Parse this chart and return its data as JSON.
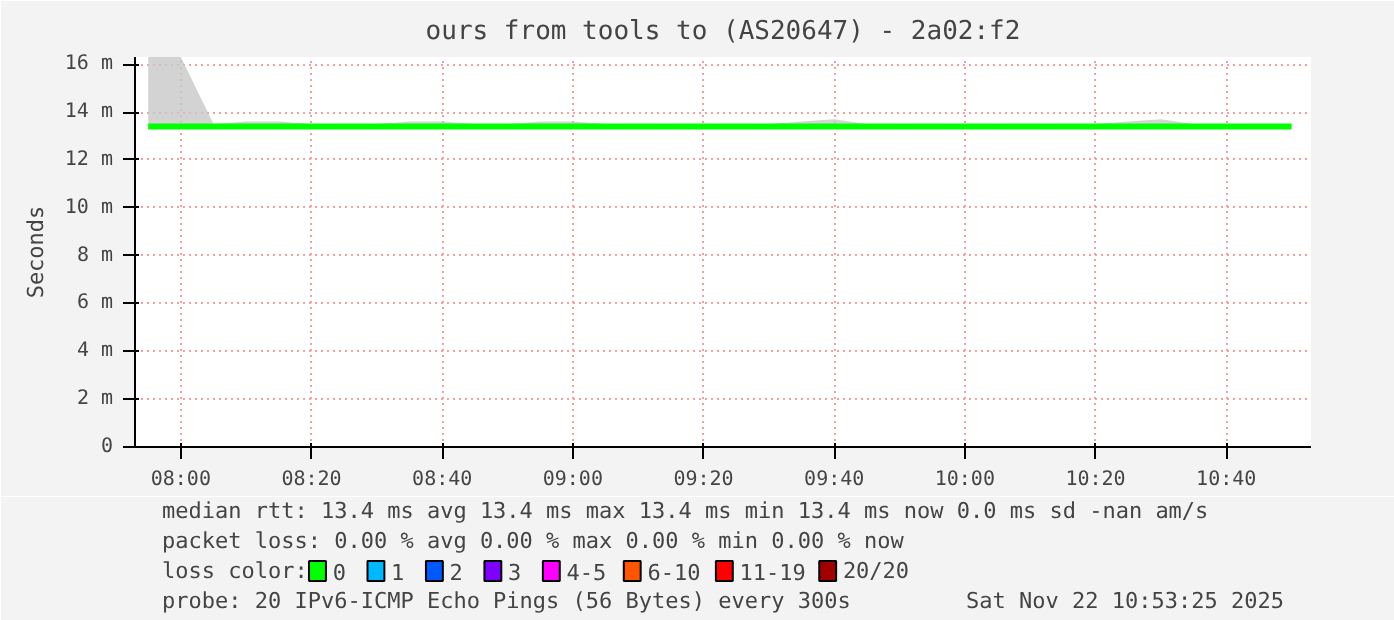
{
  "chart_data": {
    "type": "line",
    "title": "ours from tools to (AS20647) - 2a02:f2",
    "ylabel": "Seconds",
    "x": [
      7.9167,
      8.0,
      8.0833,
      8.1667,
      8.25,
      8.3333,
      8.4167,
      8.5,
      8.5833,
      8.6667,
      8.75,
      8.8333,
      8.9167,
      9.0,
      9.0833,
      9.1667,
      9.25,
      9.3333,
      9.4167,
      9.5,
      9.5833,
      9.6667,
      9.75,
      9.8333,
      9.9167,
      10.0,
      10.0833,
      10.1667,
      10.25,
      10.3333,
      10.4167,
      10.5,
      10.5833,
      10.6667,
      10.75,
      10.8333
    ],
    "xlim": [
      7.883,
      10.883
    ],
    "xticks": [
      {
        "value": 8.0,
        "label": "08:00"
      },
      {
        "value": 8.3333,
        "label": "08:20"
      },
      {
        "value": 8.6667,
        "label": "08:40"
      },
      {
        "value": 9.0,
        "label": "09:00"
      },
      {
        "value": 9.3333,
        "label": "09:20"
      },
      {
        "value": 9.6667,
        "label": "09:40"
      },
      {
        "value": 10.0,
        "label": "10:00"
      },
      {
        "value": 10.3333,
        "label": "10:20"
      },
      {
        "value": 10.6667,
        "label": "10:40"
      }
    ],
    "ylim": [
      0,
      16.3
    ],
    "yticks": [
      0,
      {
        "value": 2,
        "label": "2 m"
      },
      {
        "value": 4,
        "label": "4 m"
      },
      {
        "value": 6,
        "label": "6 m"
      },
      {
        "value": 8,
        "label": "8 m"
      },
      {
        "value": 10,
        "label": "10 m"
      },
      {
        "value": 12,
        "label": "12 m"
      },
      {
        "value": 14,
        "label": "14 m"
      },
      {
        "value": 16,
        "label": "16 m"
      }
    ],
    "series": [
      {
        "name": "0",
        "color": "#00ff00",
        "values": [
          13.4,
          13.4,
          13.4,
          13.4,
          13.4,
          13.4,
          13.4,
          13.4,
          13.4,
          13.4,
          13.4,
          13.4,
          13.4,
          13.4,
          13.4,
          13.4,
          13.4,
          13.4,
          13.4,
          13.4,
          13.4,
          13.4,
          13.4,
          13.4,
          13.4,
          13.4,
          13.4,
          13.4,
          13.4,
          13.4,
          13.4,
          13.4,
          13.4,
          13.4,
          13.4,
          13.4
        ],
        "lower": [
          13.3,
          13.3,
          13.3,
          13.3,
          13.3,
          13.3,
          13.3,
          13.3,
          13.3,
          13.3,
          13.3,
          13.3,
          13.3,
          13.3,
          13.3,
          13.3,
          13.3,
          13.3,
          13.3,
          13.3,
          13.3,
          13.3,
          13.3,
          13.3,
          13.3,
          13.3,
          13.3,
          13.3,
          13.3,
          13.3,
          13.3,
          13.3,
          13.3,
          13.3,
          13.3,
          13.3
        ],
        "upper": [
          16.3,
          16.3,
          13.5,
          13.6,
          13.6,
          13.5,
          13.5,
          13.5,
          13.6,
          13.6,
          13.5,
          13.5,
          13.6,
          13.6,
          13.5,
          13.5,
          13.5,
          13.5,
          13.5,
          13.5,
          13.6,
          13.7,
          13.5,
          13.5,
          13.5,
          13.5,
          13.5,
          13.5,
          13.5,
          13.5,
          13.6,
          13.7,
          13.5,
          13.5,
          13.5,
          13.5
        ]
      },
      {
        "name": "1",
        "color": "#00b8ff",
        "values": [
          null,
          null,
          null,
          null,
          null,
          null,
          null,
          null,
          null,
          null,
          null,
          null,
          null,
          null,
          null,
          null,
          null,
          null,
          null,
          null,
          null,
          null,
          null,
          null,
          null,
          null,
          null,
          null,
          null,
          null,
          null,
          null,
          null,
          null,
          null,
          null
        ]
      },
      {
        "name": "2",
        "color": "#0059ff",
        "values": [
          null,
          null,
          null,
          null,
          null,
          null,
          null,
          null,
          null,
          null,
          null,
          null,
          null,
          null,
          null,
          null,
          null,
          null,
          null,
          null,
          null,
          null,
          null,
          null,
          null,
          null,
          null,
          null,
          null,
          null,
          null,
          null,
          null,
          null,
          null,
          null
        ]
      },
      {
        "name": "3",
        "color": "#7e00ff",
        "values": [
          null,
          null,
          null,
          null,
          null,
          null,
          null,
          null,
          null,
          null,
          null,
          null,
          null,
          null,
          null,
          null,
          null,
          null,
          null,
          null,
          null,
          null,
          null,
          null,
          null,
          null,
          null,
          null,
          null,
          null,
          null,
          null,
          null,
          null,
          null,
          null
        ]
      },
      {
        "name": "4-5",
        "color": "#ff00ff",
        "values": [
          null,
          null,
          null,
          null,
          null,
          null,
          null,
          null,
          null,
          null,
          null,
          null,
          null,
          null,
          null,
          null,
          null,
          null,
          null,
          null,
          null,
          null,
          null,
          null,
          null,
          null,
          null,
          null,
          null,
          null,
          null,
          null,
          null,
          null,
          null,
          null
        ]
      },
      {
        "name": "6-10",
        "color": "#ff5500",
        "values": [
          null,
          null,
          null,
          null,
          null,
          null,
          null,
          null,
          null,
          null,
          null,
          null,
          null,
          null,
          null,
          null,
          null,
          null,
          null,
          null,
          null,
          null,
          null,
          null,
          null,
          null,
          null,
          null,
          null,
          null,
          null,
          null,
          null,
          null,
          null,
          null
        ]
      },
      {
        "name": "11-19",
        "color": "#ff0000",
        "values": [
          null,
          null,
          null,
          null,
          null,
          null,
          null,
          null,
          null,
          null,
          null,
          null,
          null,
          null,
          null,
          null,
          null,
          null,
          null,
          null,
          null,
          null,
          null,
          null,
          null,
          null,
          null,
          null,
          null,
          null,
          null,
          null,
          null,
          null,
          null,
          null
        ]
      },
      {
        "name": "20/20",
        "color": "#a10000",
        "values": [
          null,
          null,
          null,
          null,
          null,
          null,
          null,
          null,
          null,
          null,
          null,
          null,
          null,
          null,
          null,
          null,
          null,
          null,
          null,
          null,
          null,
          null,
          null,
          null,
          null,
          null,
          null,
          null,
          null,
          null,
          null,
          null,
          null,
          null,
          null,
          null
        ]
      }
    ],
    "legend_title": "loss color:",
    "legend": "bottom",
    "grid": true,
    "annotations": [
      "median rtt: 13.4 ms avg 13.4 ms max 13.4 ms min 13.4 ms now 0.0 ms sd -nan am/s",
      "packet loss: 0.00 % avg 0.00 % max 0.00 % min 0.00 % now",
      "probe: 20 IPv6-ICMP Echo Pings (56 Bytes) every 300s",
      "Sat Nov 22 10:53:25 2025"
    ]
  }
}
